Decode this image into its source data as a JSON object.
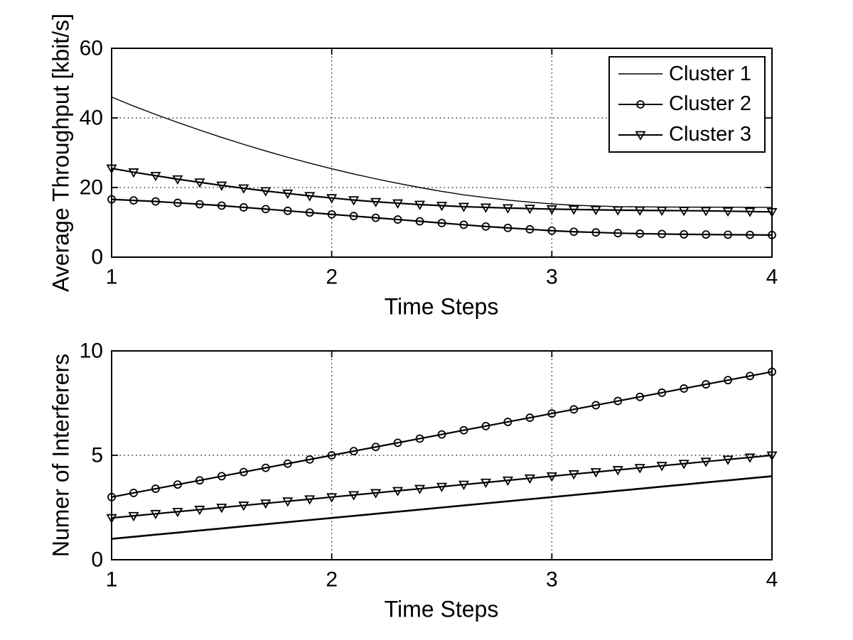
{
  "figure": {
    "background": "#ffffff",
    "axis_color": "#000000",
    "line_color": "#000000"
  },
  "legend": {
    "position": "top-right",
    "entries": [
      {
        "label": "Cluster 1",
        "marker": "none"
      },
      {
        "label": "Cluster 2",
        "marker": "circle"
      },
      {
        "label": "Cluster 3",
        "marker": "triangle-down"
      }
    ]
  },
  "chart_data": [
    {
      "type": "line",
      "title": "",
      "xlabel": "Time Steps",
      "ylabel": "Average Throughput [kbit/s]",
      "xlim": [
        1,
        4
      ],
      "ylim": [
        0,
        60
      ],
      "xticks": [
        1,
        2,
        3,
        4
      ],
      "yticks": [
        0,
        20,
        40,
        60
      ],
      "grid": true,
      "x_start": 1.0,
      "x_step": 0.1,
      "series": [
        {
          "name": "Cluster 1",
          "marker": "none",
          "line_width": 1.4,
          "values": [
            46.0,
            43.4,
            41.0,
            38.7,
            36.5,
            34.4,
            32.4,
            30.5,
            28.7,
            27.0,
            25.4,
            23.9,
            22.5,
            21.2,
            20.0,
            18.9,
            17.9,
            17.1,
            16.4,
            15.8,
            15.3,
            14.9,
            14.7,
            14.5,
            14.45,
            14.4,
            14.38,
            14.36,
            14.34,
            14.32,
            14.3
          ]
        },
        {
          "name": "Cluster 2",
          "marker": "circle",
          "line_width": 2.2,
          "values": [
            16.6,
            16.3,
            16.0,
            15.6,
            15.2,
            14.8,
            14.3,
            13.8,
            13.3,
            12.8,
            12.3,
            11.8,
            11.3,
            10.8,
            10.3,
            9.8,
            9.3,
            8.8,
            8.4,
            8.0,
            7.6,
            7.3,
            7.1,
            6.9,
            6.75,
            6.65,
            6.55,
            6.5,
            6.45,
            6.4,
            6.35
          ]
        },
        {
          "name": "Cluster 3",
          "marker": "triangle-down",
          "line_width": 2.2,
          "values": [
            25.5,
            24.4,
            23.4,
            22.4,
            21.5,
            20.6,
            19.8,
            19.0,
            18.3,
            17.6,
            17.0,
            16.4,
            15.9,
            15.5,
            15.1,
            14.8,
            14.5,
            14.3,
            14.1,
            13.95,
            13.8,
            13.7,
            13.6,
            13.5,
            13.45,
            13.4,
            13.35,
            13.3,
            13.2,
            13.1,
            13.0
          ]
        }
      ]
    },
    {
      "type": "line",
      "title": "",
      "xlabel": "Time Steps",
      "ylabel": "Numer of Interferers",
      "xlim": [
        1,
        4
      ],
      "ylim": [
        0,
        10
      ],
      "xticks": [
        1,
        2,
        3,
        4
      ],
      "yticks": [
        0,
        5,
        10
      ],
      "grid": true,
      "x_start": 1.0,
      "x_step": 0.1,
      "series": [
        {
          "name": "Cluster 1",
          "marker": "none",
          "line_width": 2.6,
          "values": [
            1.0,
            1.1,
            1.2,
            1.3,
            1.4,
            1.5,
            1.6,
            1.7,
            1.8,
            1.9,
            2.0,
            2.1,
            2.2,
            2.3,
            2.4,
            2.5,
            2.6,
            2.7,
            2.8,
            2.9,
            3.0,
            3.1,
            3.2,
            3.3,
            3.4,
            3.5,
            3.6,
            3.7,
            3.8,
            3.9,
            4.0
          ]
        },
        {
          "name": "Cluster 2",
          "marker": "circle",
          "line_width": 2.2,
          "values": [
            3.0,
            3.2,
            3.4,
            3.6,
            3.8,
            4.0,
            4.2,
            4.4,
            4.6,
            4.8,
            5.0,
            5.2,
            5.4,
            5.6,
            5.8,
            6.0,
            6.2,
            6.4,
            6.6,
            6.8,
            7.0,
            7.2,
            7.4,
            7.6,
            7.8,
            8.0,
            8.2,
            8.4,
            8.6,
            8.8,
            9.0
          ]
        },
        {
          "name": "Cluster 3",
          "marker": "triangle-down",
          "line_width": 2.2,
          "values": [
            2.0,
            2.1,
            2.2,
            2.3,
            2.4,
            2.5,
            2.6,
            2.7,
            2.8,
            2.9,
            3.0,
            3.1,
            3.2,
            3.3,
            3.4,
            3.5,
            3.6,
            3.7,
            3.8,
            3.9,
            4.0,
            4.1,
            4.2,
            4.3,
            4.4,
            4.5,
            4.6,
            4.7,
            4.8,
            4.9,
            5.0
          ]
        }
      ]
    }
  ]
}
